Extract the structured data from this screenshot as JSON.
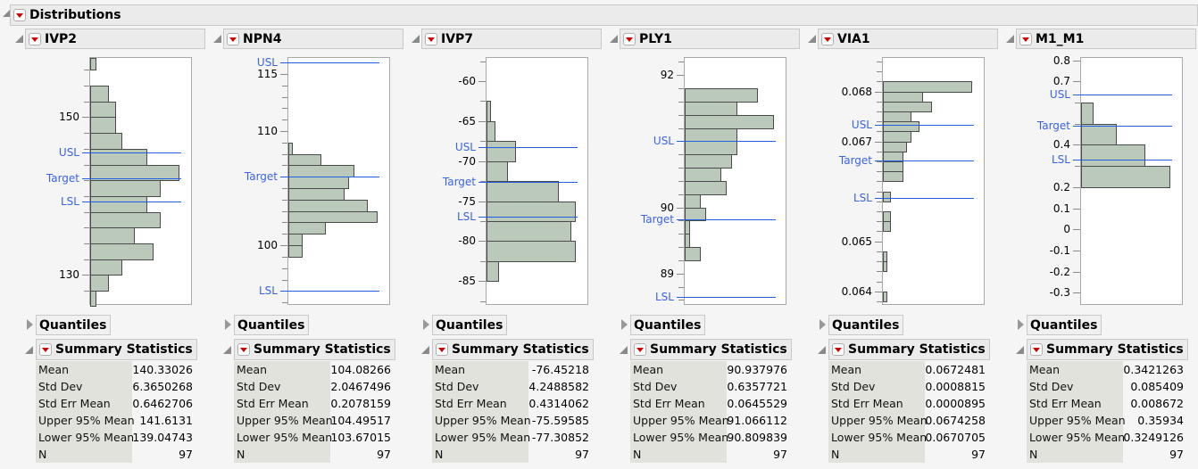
{
  "title": "Distributions",
  "quantiles_label": "Quantiles",
  "summary_label": "Summary Statistics",
  "stat_labels": [
    "Mean",
    "Std Dev",
    "Std Err Mean",
    "Upper 95% Mean",
    "Lower 95% Mean",
    "N"
  ],
  "colors": {
    "bar_fill": "#bac9b9",
    "ref_line": "#2060e0",
    "ref_label": "#3a63e6"
  },
  "chart_data": [
    {
      "type": "bar",
      "orientation": "horizontal-histogram",
      "title": "IVP2",
      "ylim": [
        126.1,
        157.5
      ],
      "tick_labels": [
        {
          "v": 150,
          "t": "150"
        },
        {
          "v": 130,
          "t": "130"
        }
      ],
      "minor_step": 2,
      "bins": [
        [
          156,
          158,
          1
        ],
        [
          152,
          154,
          3
        ],
        [
          150,
          152,
          4
        ],
        [
          148,
          150,
          4
        ],
        [
          146,
          148,
          5
        ],
        [
          144,
          146,
          9
        ],
        [
          142,
          144,
          14
        ],
        [
          140,
          142,
          11
        ],
        [
          138,
          140,
          9
        ],
        [
          136,
          138,
          11
        ],
        [
          134,
          136,
          7
        ],
        [
          132,
          134,
          10
        ],
        [
          130,
          132,
          5
        ],
        [
          128,
          130,
          3
        ],
        [
          126,
          128,
          1
        ]
      ],
      "refs": [
        {
          "label": "USL",
          "v": 145.5
        },
        {
          "label": "Target",
          "v": 142.3
        },
        {
          "label": "LSL",
          "v": 139.3
        }
      ],
      "stats": [
        "140.33026",
        "6.3650268",
        "0.6462706",
        "141.6131",
        "139.04743",
        "97"
      ]
    },
    {
      "type": "bar",
      "orientation": "horizontal-histogram",
      "title": "NPN4",
      "ylim": [
        94.7,
        116.4
      ],
      "tick_labels": [
        {
          "v": 115,
          "t": "115"
        },
        {
          "v": 110,
          "t": "110"
        },
        {
          "v": 100,
          "t": "100"
        }
      ],
      "minor_step": 1,
      "bins": [
        [
          108,
          109,
          1
        ],
        [
          107,
          108,
          7
        ],
        [
          106,
          107,
          14
        ],
        [
          105,
          106,
          13
        ],
        [
          104,
          105,
          12
        ],
        [
          103,
          104,
          17
        ],
        [
          102,
          103,
          19
        ],
        [
          101,
          102,
          8
        ],
        [
          100,
          101,
          3
        ],
        [
          99,
          100,
          3
        ]
      ],
      "refs": [
        {
          "label": "USL",
          "v": 116
        },
        {
          "label": "Target",
          "v": 106
        },
        {
          "label": "LSL",
          "v": 96
        }
      ],
      "stats": [
        "104.08266",
        "2.0467496",
        "0.2078159",
        "104.49517",
        "103.67015",
        "97"
      ]
    },
    {
      "type": "bar",
      "orientation": "horizontal-histogram",
      "title": "IVP7",
      "ylim": [
        -88.1,
        -57.1
      ],
      "tick_labels": [
        {
          "v": -60,
          "t": "-60"
        },
        {
          "v": -65,
          "t": "-65"
        },
        {
          "v": -70,
          "t": "-70"
        },
        {
          "v": -75,
          "t": "-75"
        },
        {
          "v": -80,
          "t": "-80"
        },
        {
          "v": -85,
          "t": "-85"
        }
      ],
      "minor_step": 2.5,
      "bins": [
        [
          -65,
          -62.5,
          1
        ],
        [
          -67.5,
          -65,
          2
        ],
        [
          -70,
          -67.5,
          7
        ],
        [
          -72.5,
          -70,
          5
        ],
        [
          -75,
          -72.5,
          17
        ],
        [
          -77.5,
          -75,
          21
        ],
        [
          -80,
          -77.5,
          20
        ],
        [
          -82.5,
          -80,
          21
        ],
        [
          -85,
          -82.5,
          3
        ]
      ],
      "refs": [
        {
          "label": "USL",
          "v": -68.2
        },
        {
          "label": "Target",
          "v": -72.6
        },
        {
          "label": "LSL",
          "v": -77
        }
      ],
      "stats": [
        "-76.45218",
        "4.2488582",
        "0.4314062",
        "-75.59585",
        "-77.30852",
        "97"
      ]
    },
    {
      "type": "bar",
      "orientation": "horizontal-histogram",
      "title": "PLY1",
      "ylim": [
        88.51,
        92.26
      ],
      "tick_labels": [
        {
          "v": 92,
          "t": "92"
        },
        {
          "v": 90,
          "t": "90"
        },
        {
          "v": 89,
          "t": "89"
        }
      ],
      "minor_step": 0.2,
      "bins": [
        [
          91.6,
          91.8,
          14
        ],
        [
          91.4,
          91.6,
          10
        ],
        [
          91.2,
          91.4,
          17
        ],
        [
          91.0,
          91.2,
          10
        ],
        [
          90.8,
          91.0,
          10
        ],
        [
          90.6,
          90.8,
          9
        ],
        [
          90.4,
          90.6,
          7
        ],
        [
          90.2,
          90.4,
          8
        ],
        [
          90.0,
          90.2,
          3
        ],
        [
          89.8,
          90.0,
          4
        ],
        [
          89.6,
          89.8,
          1
        ],
        [
          89.4,
          89.6,
          1
        ],
        [
          89.2,
          89.4,
          3
        ]
      ],
      "refs": [
        {
          "label": "USL",
          "v": 91.0
        },
        {
          "label": "Target",
          "v": 89.82
        },
        {
          "label": "LSL",
          "v": 88.64
        }
      ],
      "stats": [
        "90.937976",
        "0.6357721",
        "0.0645529",
        "91.066112",
        "90.809839",
        "97"
      ]
    },
    {
      "type": "bar",
      "orientation": "horizontal-histogram",
      "title": "VIA1",
      "ylim": [
        0.06371,
        0.06867
      ],
      "tick_labels": [
        {
          "v": 0.068,
          "t": "0.068"
        },
        {
          "v": 0.067,
          "t": "0.067"
        },
        {
          "v": 0.065,
          "t": "0.065"
        },
        {
          "v": 0.064,
          "t": "0.064"
        }
      ],
      "minor_step": 0.0002,
      "bins": [
        [
          0.068,
          0.0682,
          22
        ],
        [
          0.0678,
          0.068,
          10
        ],
        [
          0.0676,
          0.0678,
          12
        ],
        [
          0.0674,
          0.0676,
          7
        ],
        [
          0.0672,
          0.0674,
          9
        ],
        [
          0.067,
          0.0672,
          7
        ],
        [
          0.0668,
          0.067,
          6
        ],
        [
          0.0666,
          0.0668,
          5
        ],
        [
          0.0664,
          0.0666,
          5
        ],
        [
          0.0662,
          0.0664,
          5
        ],
        [
          0.0658,
          0.066,
          2
        ],
        [
          0.0654,
          0.0656,
          2
        ],
        [
          0.0652,
          0.0654,
          2
        ],
        [
          0.0646,
          0.0648,
          1
        ],
        [
          0.0644,
          0.0646,
          1
        ],
        [
          0.0638,
          0.064,
          1
        ]
      ],
      "refs": [
        {
          "label": "USL",
          "v": 0.06734
        },
        {
          "label": "Target",
          "v": 0.06661
        },
        {
          "label": "LSL",
          "v": 0.06587
        }
      ],
      "stats": [
        "0.0672481",
        "0.0008815",
        "0.0000895",
        "0.0674258",
        "0.0670705",
        "97"
      ]
    },
    {
      "type": "bar",
      "orientation": "horizontal-histogram",
      "title": "M1_M1",
      "ylim": [
        -0.362,
        0.811
      ],
      "tick_labels": [
        {
          "v": 0.8,
          "t": "0.8"
        },
        {
          "v": 0.7,
          "t": "0.7"
        },
        {
          "v": 0.4,
          "t": "0.4"
        },
        {
          "v": 0.2,
          "t": "0.2"
        },
        {
          "v": 0.1,
          "t": "0.1"
        },
        {
          "v": 0,
          "t": "0"
        },
        {
          "v": -0.1,
          "t": "-0.1"
        },
        {
          "v": -0.2,
          "t": "-0.2"
        },
        {
          "v": -0.3,
          "t": "-0.3"
        }
      ],
      "minor_step": 0.1,
      "bins": [
        [
          0.5,
          0.6,
          6
        ],
        [
          0.4,
          0.5,
          17
        ],
        [
          0.3,
          0.4,
          31
        ],
        [
          0.2,
          0.3,
          43
        ]
      ],
      "refs": [
        {
          "label": "USL",
          "v": 0.64
        },
        {
          "label": "Target",
          "v": 0.49
        },
        {
          "label": "LSL",
          "v": 0.33
        }
      ],
      "stats": [
        "0.3421263",
        "0.085409",
        "0.008672",
        "0.35934",
        "0.3249126",
        "97"
      ]
    }
  ]
}
